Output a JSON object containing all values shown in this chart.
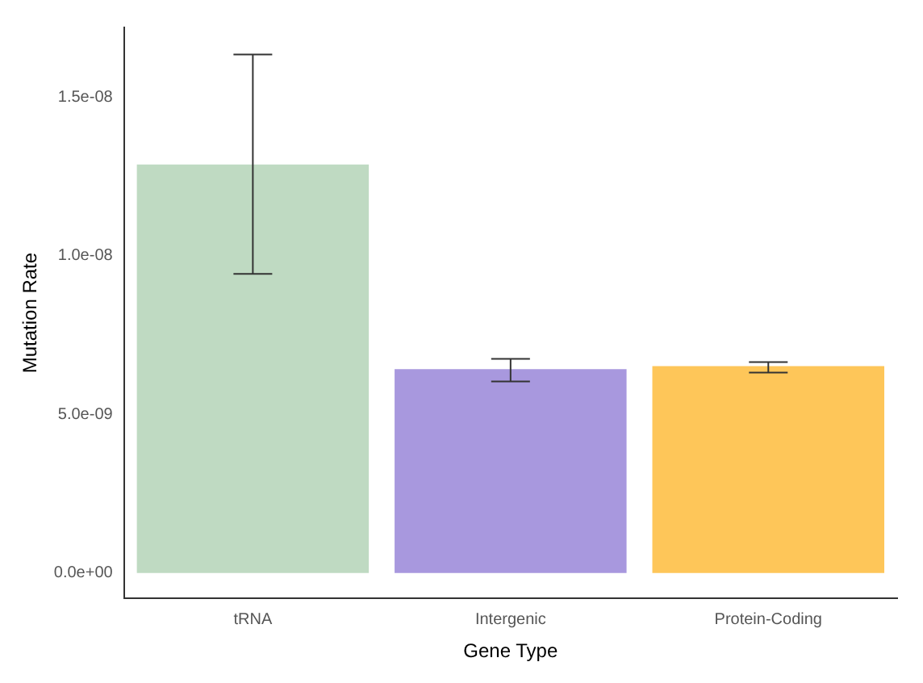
{
  "chart_data": {
    "type": "bar",
    "xlabel": "Gene Type",
    "ylabel": "Mutation Rate",
    "categories": [
      "tRNA",
      "Intergenic",
      "Protein-Coding"
    ],
    "values": [
      1.288e-08,
      6.43e-09,
      6.52e-09
    ],
    "colors": [
      "#bfdac2",
      "#a898de",
      "#fec659"
    ],
    "errors": [
      [
        9.43e-09,
        1.635e-08
      ],
      [
        6.04e-09,
        6.75e-09
      ],
      [
        6.32e-09,
        6.65e-09
      ]
    ],
    "ylim": [
      -8e-10,
      1.72e-08
    ],
    "yticks": [
      {
        "value": 0,
        "label": "0.0e+00"
      },
      {
        "value": 5e-09,
        "label": "5.0e-09"
      },
      {
        "value": 1e-08,
        "label": "1.0e-08"
      },
      {
        "value": 1.5e-08,
        "label": "1.5e-08"
      }
    ],
    "grid": false,
    "legend": false
  }
}
